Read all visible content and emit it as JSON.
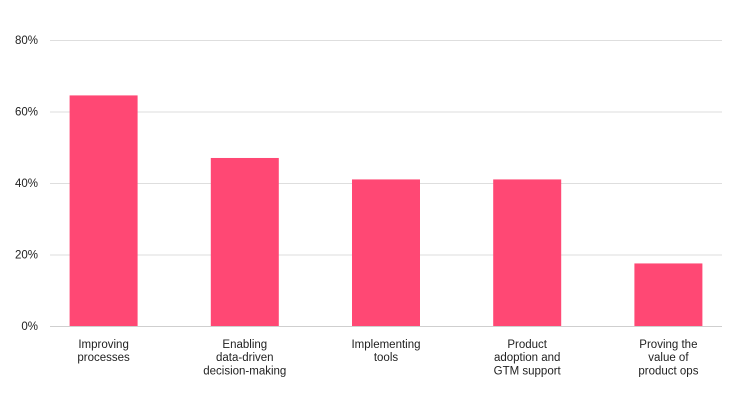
{
  "chart_data": {
    "type": "bar",
    "title": "",
    "xlabel": "",
    "ylabel": "",
    "categories": [
      [
        "Improving",
        "processes"
      ],
      [
        "Enabling",
        "data-driven",
        "decision-making"
      ],
      [
        "Implementing",
        "tools"
      ],
      [
        "Product",
        "adoption and",
        "GTM support"
      ],
      [
        "Proving the",
        "value of",
        "product ops"
      ]
    ],
    "values": [
      64.5,
      47,
      41,
      41,
      17.5
    ],
    "ylim": [
      0,
      80
    ],
    "yticks": [
      0,
      20,
      40,
      60,
      80
    ],
    "ytick_labels": [
      "0%",
      "20%",
      "40%",
      "60%",
      "80%"
    ],
    "grid": true,
    "legend": "none",
    "colors": {
      "bar": "#ff4874",
      "grid": "#dedede",
      "text": "#222222"
    }
  }
}
